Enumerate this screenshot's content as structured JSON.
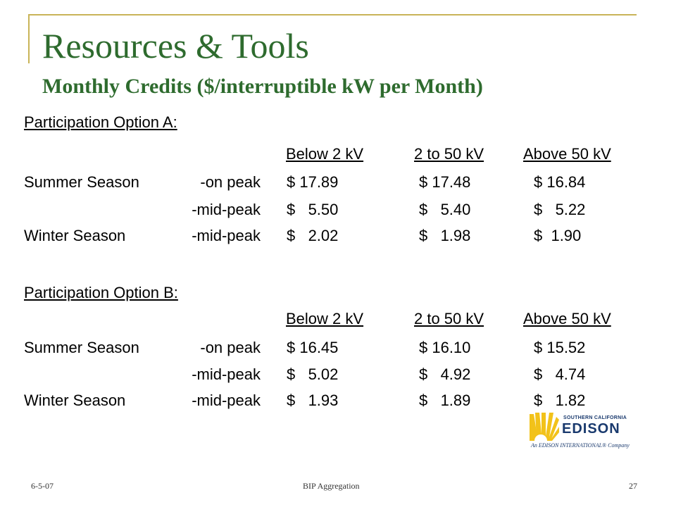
{
  "slide": {
    "title": "Resources & Tools",
    "subtitle": "Monthly Credits ($/interruptible kW per Month)"
  },
  "option_a": {
    "heading": "Participation Option A:",
    "col_headers": [
      "Below 2 kV",
      "2 to 50 kV",
      "Above 50 kV"
    ],
    "rows": [
      {
        "season": "Summer Season",
        "period": "-on peak",
        "values": [
          "$ 17.89",
          "$ 17.48",
          "$ 16.84"
        ]
      },
      {
        "season": "",
        "period": "-mid-peak",
        "values": [
          "$   5.50",
          "$   5.40",
          "$   5.22"
        ]
      },
      {
        "season": "Winter Season",
        "period": "-mid-peak",
        "values": [
          "$   2.02",
          "$   1.98",
          "$  1.90"
        ]
      }
    ]
  },
  "option_b": {
    "heading": "Participation Option B:",
    "col_headers": [
      "Below 2 kV",
      "2 to 50 kV",
      "Above 50 kV"
    ],
    "rows": [
      {
        "season": "Summer Season",
        "period": "-on peak",
        "values": [
          "$ 16.45",
          "$ 16.10",
          "$ 15.52"
        ]
      },
      {
        "season": "",
        "period": "-mid-peak",
        "values": [
          "$   5.02",
          "$   4.92",
          "$   4.74"
        ]
      },
      {
        "season": "Winter Season",
        "period": "-mid-peak",
        "values": [
          "$   1.93",
          "$   1.89",
          "$   1.82"
        ]
      }
    ]
  },
  "logo": {
    "top_text": "SOUTHERN CALIFORNIA",
    "main_text": "EDISON",
    "bottom_text": "An EDISON INTERNATIONAL® Company",
    "icon": "sunburst-icon"
  },
  "footer": {
    "date": "6-5-07",
    "center": "BIP Aggregation",
    "page": "27"
  },
  "colors": {
    "title": "#2e6b2e",
    "frame": "#c9b458",
    "logo_blue": "#1a3a6e",
    "logo_yellow": "#f2c21a"
  }
}
